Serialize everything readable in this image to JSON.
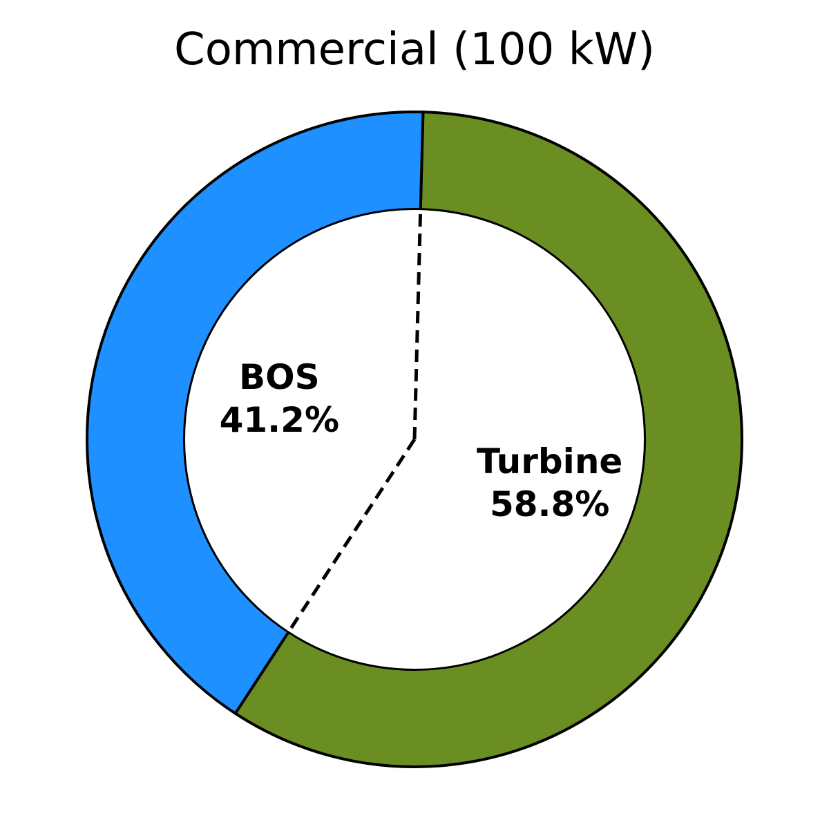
{
  "chart_data": {
    "type": "pie",
    "style": "donut",
    "title": "Commercial (100 kW)",
    "categories": [
      "Turbine",
      "BOS"
    ],
    "values": [
      58.8,
      41.2
    ],
    "labels": [
      "58.8%",
      "41.2%"
    ],
    "colors": [
      "#6B8E23",
      "#1E90FF"
    ],
    "start": "top",
    "direction": "clockwise"
  }
}
